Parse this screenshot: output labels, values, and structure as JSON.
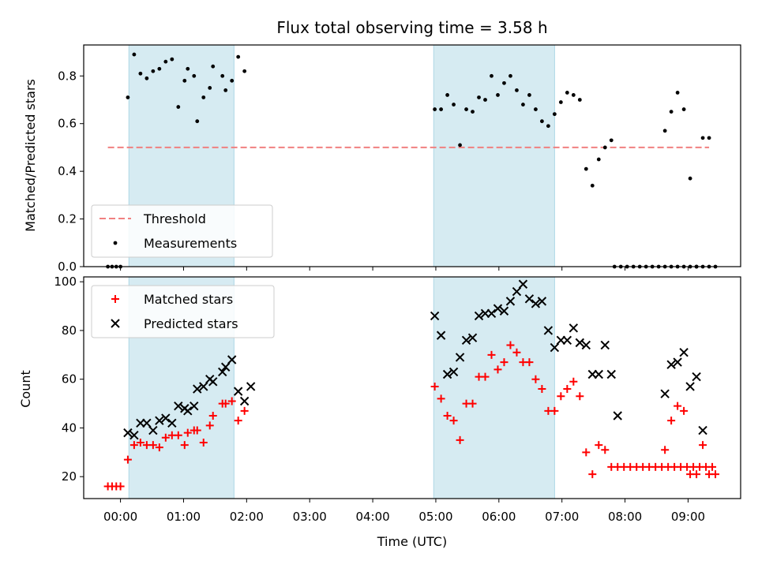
{
  "chart_data": [
    {
      "type": "scatter",
      "title": "Flux total observing time = 3.58 h",
      "ylabel": "Matched/Predicted stars",
      "xlabel": "",
      "xlim": [
        "23:25",
        "09:50"
      ],
      "ylim": [
        0,
        0.93
      ],
      "yticks": [
        0.0,
        0.2,
        0.4,
        0.6,
        0.8
      ],
      "ytick_labels": [
        "0.0",
        "0.2",
        "0.4",
        "0.6",
        "0.8"
      ],
      "legend_position": "lower-left",
      "highlight_intervals": [
        [
          "00:08",
          "01:48"
        ],
        [
          "04:58",
          "06:53"
        ]
      ],
      "threshold": {
        "name": "Threshold",
        "y": 0.5,
        "x": [
          "23:48",
          "09:20"
        ],
        "color": "#f08080"
      },
      "series": [
        {
          "name": "Measurements",
          "color": "#000000",
          "points": [
            [
              "23:48",
              0.0
            ],
            [
              "23:52",
              0.0
            ],
            [
              "23:56",
              0.0
            ],
            [
              "00:00",
              0.0
            ],
            [
              "00:07",
              0.71
            ],
            [
              "00:13",
              0.89
            ],
            [
              "00:19",
              0.81
            ],
            [
              "00:25",
              0.79
            ],
            [
              "00:31",
              0.82
            ],
            [
              "00:37",
              0.83
            ],
            [
              "00:43",
              0.86
            ],
            [
              "00:49",
              0.87
            ],
            [
              "00:55",
              0.67
            ],
            [
              "01:01",
              0.78
            ],
            [
              "01:04",
              0.83
            ],
            [
              "01:10",
              0.8
            ],
            [
              "01:13",
              0.61
            ],
            [
              "01:19",
              0.71
            ],
            [
              "01:25",
              0.75
            ],
            [
              "01:28",
              0.84
            ],
            [
              "01:37",
              0.8
            ],
            [
              "01:40",
              0.74
            ],
            [
              "01:46",
              0.78
            ],
            [
              "01:52",
              0.88
            ],
            [
              "01:58",
              0.82
            ],
            [
              "04:59",
              0.66
            ],
            [
              "05:05",
              0.66
            ],
            [
              "05:11",
              0.72
            ],
            [
              "05:17",
              0.68
            ],
            [
              "05:23",
              0.51
            ],
            [
              "05:29",
              0.66
            ],
            [
              "05:35",
              0.65
            ],
            [
              "05:41",
              0.71
            ],
            [
              "05:47",
              0.7
            ],
            [
              "05:53",
              0.8
            ],
            [
              "05:59",
              0.72
            ],
            [
              "06:05",
              0.77
            ],
            [
              "06:11",
              0.8
            ],
            [
              "06:17",
              0.74
            ],
            [
              "06:23",
              0.68
            ],
            [
              "06:29",
              0.72
            ],
            [
              "06:35",
              0.66
            ],
            [
              "06:41",
              0.61
            ],
            [
              "06:47",
              0.59
            ],
            [
              "06:53",
              0.64
            ],
            [
              "06:59",
              0.69
            ],
            [
              "07:05",
              0.73
            ],
            [
              "07:11",
              0.72
            ],
            [
              "07:17",
              0.7
            ],
            [
              "07:23",
              0.41
            ],
            [
              "07:29",
              0.34
            ],
            [
              "07:35",
              0.45
            ],
            [
              "07:41",
              0.5
            ],
            [
              "07:47",
              0.53
            ],
            [
              "07:50",
              0.0
            ],
            [
              "07:56",
              0.0
            ],
            [
              "08:02",
              0.0
            ],
            [
              "08:08",
              0.0
            ],
            [
              "08:14",
              0.0
            ],
            [
              "08:20",
              0.0
            ],
            [
              "08:26",
              0.0
            ],
            [
              "08:32",
              0.0
            ],
            [
              "08:38",
              0.0
            ],
            [
              "08:44",
              0.0
            ],
            [
              "08:50",
              0.0
            ],
            [
              "08:56",
              0.0
            ],
            [
              "09:02",
              0.0
            ],
            [
              "09:08",
              0.0
            ],
            [
              "09:14",
              0.0
            ],
            [
              "09:20",
              0.0
            ],
            [
              "08:38",
              0.57
            ],
            [
              "08:44",
              0.65
            ],
            [
              "08:50",
              0.73
            ],
            [
              "08:56",
              0.66
            ],
            [
              "09:02",
              0.37
            ],
            [
              "09:08",
              0.0
            ],
            [
              "09:14",
              0.54
            ],
            [
              "09:20",
              0.54
            ],
            [
              "09:26",
              0.0
            ]
          ]
        }
      ]
    },
    {
      "type": "scatter",
      "title": "",
      "ylabel": "Count",
      "xlabel": "Time (UTC)",
      "xlim": [
        "23:25",
        "09:50"
      ],
      "ylim": [
        11,
        102
      ],
      "yticks": [
        20,
        40,
        60,
        80,
        100
      ],
      "ytick_labels": [
        "20",
        "40",
        "60",
        "80",
        "100"
      ],
      "xticks": [
        "00:00",
        "01:00",
        "02:00",
        "03:00",
        "04:00",
        "05:00",
        "06:00",
        "07:00",
        "08:00",
        "09:00"
      ],
      "xtick_labels": [
        "00:00",
        "01:00",
        "02:00",
        "03:00",
        "04:00",
        "05:00",
        "06:00",
        "07:00",
        "08:00",
        "09:00"
      ],
      "legend_position": "top-left",
      "highlight_intervals": [
        [
          "00:08",
          "01:48"
        ],
        [
          "04:58",
          "06:53"
        ]
      ],
      "series": [
        {
          "name": "Matched stars",
          "color": "#ff0000",
          "marker": "plus",
          "points": [
            [
              "23:48",
              16
            ],
            [
              "23:52",
              16
            ],
            [
              "23:56",
              16
            ],
            [
              "00:00",
              16
            ],
            [
              "00:07",
              27
            ],
            [
              "00:13",
              33
            ],
            [
              "00:19",
              34
            ],
            [
              "00:25",
              33
            ],
            [
              "00:31",
              33
            ],
            [
              "00:37",
              32
            ],
            [
              "00:43",
              36
            ],
            [
              "00:49",
              37
            ],
            [
              "00:55",
              37
            ],
            [
              "01:01",
              33
            ],
            [
              "01:04",
              38
            ],
            [
              "01:10",
              39
            ],
            [
              "01:13",
              39
            ],
            [
              "01:19",
              34
            ],
            [
              "01:25",
              41
            ],
            [
              "01:28",
              45
            ],
            [
              "01:37",
              50
            ],
            [
              "01:40",
              50
            ],
            [
              "01:46",
              51
            ],
            [
              "01:52",
              43
            ],
            [
              "01:58",
              47
            ],
            [
              "04:59",
              57
            ],
            [
              "05:05",
              52
            ],
            [
              "05:11",
              45
            ],
            [
              "05:17",
              43
            ],
            [
              "05:23",
              35
            ],
            [
              "05:29",
              50
            ],
            [
              "05:35",
              50
            ],
            [
              "05:41",
              61
            ],
            [
              "05:47",
              61
            ],
            [
              "05:53",
              70
            ],
            [
              "05:59",
              64
            ],
            [
              "06:05",
              67
            ],
            [
              "06:11",
              74
            ],
            [
              "06:17",
              71
            ],
            [
              "06:23",
              67
            ],
            [
              "06:29",
              67
            ],
            [
              "06:35",
              60
            ],
            [
              "06:41",
              56
            ],
            [
              "06:47",
              47
            ],
            [
              "06:53",
              47
            ],
            [
              "06:59",
              53
            ],
            [
              "07:05",
              56
            ],
            [
              "07:11",
              59
            ],
            [
              "07:17",
              53
            ],
            [
              "07:23",
              30
            ],
            [
              "07:29",
              21
            ],
            [
              "07:35",
              33
            ],
            [
              "07:41",
              31
            ],
            [
              "07:47",
              24
            ],
            [
              "07:53",
              24
            ],
            [
              "07:59",
              24
            ],
            [
              "08:05",
              24
            ],
            [
              "08:11",
              24
            ],
            [
              "08:17",
              24
            ],
            [
              "08:23",
              24
            ],
            [
              "08:29",
              24
            ],
            [
              "08:35",
              24
            ],
            [
              "08:41",
              24
            ],
            [
              "08:47",
              24
            ],
            [
              "08:53",
              24
            ],
            [
              "08:59",
              24
            ],
            [
              "09:05",
              24
            ],
            [
              "09:11",
              24
            ],
            [
              "09:17",
              24
            ],
            [
              "09:23",
              24
            ],
            [
              "08:38",
              31
            ],
            [
              "08:44",
              43
            ],
            [
              "08:50",
              49
            ],
            [
              "08:56",
              47
            ],
            [
              "09:02",
              21
            ],
            [
              "09:08",
              21
            ],
            [
              "09:14",
              33
            ],
            [
              "09:20",
              21
            ],
            [
              "09:26",
              21
            ]
          ]
        },
        {
          "name": "Predicted stars",
          "color": "#000000",
          "marker": "x",
          "points": [
            [
              "00:07",
              38
            ],
            [
              "00:13",
              37
            ],
            [
              "00:19",
              42
            ],
            [
              "00:25",
              42
            ],
            [
              "00:31",
              39
            ],
            [
              "00:37",
              43
            ],
            [
              "00:43",
              44
            ],
            [
              "00:49",
              42
            ],
            [
              "00:55",
              49
            ],
            [
              "01:01",
              48
            ],
            [
              "01:04",
              47
            ],
            [
              "01:10",
              49
            ],
            [
              "01:13",
              56
            ],
            [
              "01:19",
              57
            ],
            [
              "01:25",
              60
            ],
            [
              "01:28",
              59
            ],
            [
              "01:37",
              63
            ],
            [
              "01:40",
              65
            ],
            [
              "01:46",
              68
            ],
            [
              "01:52",
              55
            ],
            [
              "01:58",
              51
            ],
            [
              "02:04",
              57
            ],
            [
              "04:59",
              86
            ],
            [
              "05:05",
              78
            ],
            [
              "05:11",
              62
            ],
            [
              "05:17",
              63
            ],
            [
              "05:23",
              69
            ],
            [
              "05:29",
              76
            ],
            [
              "05:35",
              77
            ],
            [
              "05:41",
              86
            ],
            [
              "05:47",
              87
            ],
            [
              "05:53",
              87
            ],
            [
              "05:59",
              89
            ],
            [
              "06:05",
              88
            ],
            [
              "06:11",
              92
            ],
            [
              "06:17",
              96
            ],
            [
              "06:23",
              99
            ],
            [
              "06:29",
              93
            ],
            [
              "06:35",
              91
            ],
            [
              "06:41",
              92
            ],
            [
              "06:47",
              80
            ],
            [
              "06:53",
              73
            ],
            [
              "06:59",
              76
            ],
            [
              "07:05",
              76
            ],
            [
              "07:11",
              81
            ],
            [
              "07:17",
              75
            ],
            [
              "07:23",
              74
            ],
            [
              "07:29",
              62
            ],
            [
              "07:35",
              62
            ],
            [
              "07:41",
              74
            ],
            [
              "07:47",
              62
            ],
            [
              "07:53",
              45
            ],
            [
              "08:38",
              54
            ],
            [
              "08:44",
              66
            ],
            [
              "08:50",
              67
            ],
            [
              "08:56",
              71
            ],
            [
              "09:02",
              57
            ],
            [
              "09:08",
              61
            ],
            [
              "09:14",
              39
            ]
          ]
        }
      ]
    }
  ]
}
